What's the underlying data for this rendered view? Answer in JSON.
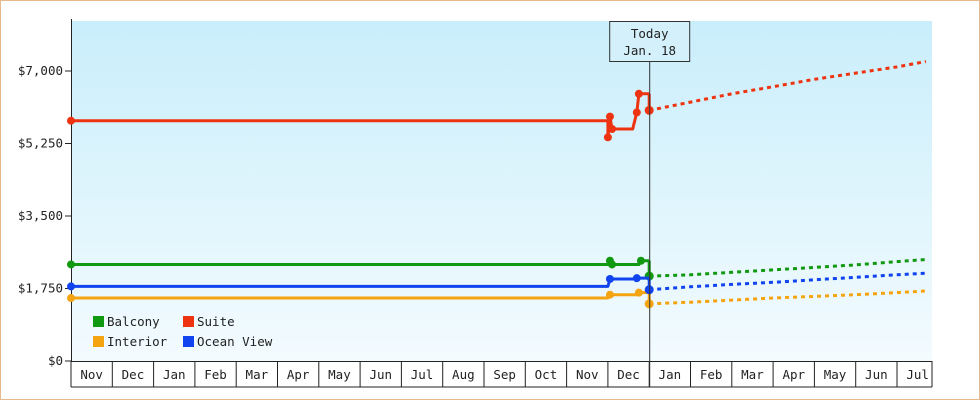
{
  "chart_data": {
    "type": "line",
    "x_labels": [
      "Nov",
      "Dec",
      "Jan",
      "Feb",
      "Mar",
      "Apr",
      "May",
      "Jun",
      "Jul",
      "Aug",
      "Sep",
      "Oct",
      "Nov",
      "Dec",
      "Jan",
      "Feb",
      "Mar",
      "Apr",
      "May",
      "Jun",
      "Jul"
    ],
    "y_ticks": [
      "$0",
      "$1,750",
      "$3,500",
      "$5,250",
      "$7,000"
    ],
    "ylim": [
      0,
      8000
    ],
    "today_label": [
      "Today",
      "Jan. 18"
    ],
    "legend_placement": "bottom-left",
    "series": [
      {
        "name": "Balcony",
        "color": "#119911",
        "history": [
          [
            0,
            2330
          ],
          [
            13.0,
            2330
          ],
          [
            13.05,
            2420
          ],
          [
            13.1,
            2330
          ],
          [
            13.75,
            2330
          ],
          [
            13.8,
            2420
          ],
          [
            14.0,
            2420
          ]
        ],
        "current": 2050,
        "forecast": [
          [
            14.0,
            2050
          ],
          [
            15.0,
            2080
          ],
          [
            16.0,
            2140
          ],
          [
            17.0,
            2200
          ],
          [
            18.0,
            2260
          ],
          [
            19.0,
            2320
          ],
          [
            20.0,
            2400
          ],
          [
            20.7,
            2450
          ]
        ]
      },
      {
        "name": "Suite",
        "color": "#ee3311",
        "history": [
          [
            0,
            5800
          ],
          [
            13.0,
            5800
          ],
          [
            13.0,
            5400
          ],
          [
            13.05,
            5900
          ],
          [
            13.1,
            5600
          ],
          [
            13.6,
            5600
          ],
          [
            13.7,
            6000
          ],
          [
            13.75,
            6450
          ],
          [
            13.95,
            6450
          ],
          [
            14.0,
            6450
          ]
        ],
        "current": 6050,
        "forecast": [
          [
            14.0,
            6050
          ],
          [
            15.0,
            6250
          ],
          [
            16.0,
            6450
          ],
          [
            17.0,
            6620
          ],
          [
            18.0,
            6800
          ],
          [
            19.0,
            6950
          ],
          [
            20.0,
            7100
          ],
          [
            20.7,
            7230
          ]
        ]
      },
      {
        "name": "Interior",
        "color": "#f5a411",
        "history": [
          [
            0,
            1520
          ],
          [
            13.0,
            1520
          ],
          [
            13.05,
            1600
          ],
          [
            13.1,
            1600
          ],
          [
            13.7,
            1600
          ],
          [
            13.75,
            1650
          ],
          [
            14.0,
            1650
          ]
        ],
        "current": 1380,
        "forecast": [
          [
            14.0,
            1380
          ],
          [
            15.0,
            1420
          ],
          [
            16.0,
            1470
          ],
          [
            17.0,
            1520
          ],
          [
            18.0,
            1560
          ],
          [
            19.0,
            1600
          ],
          [
            20.0,
            1650
          ],
          [
            20.7,
            1690
          ]
        ]
      },
      {
        "name": "Ocean View",
        "color": "#1144ee",
        "history": [
          [
            0,
            1800
          ],
          [
            13.0,
            1800
          ],
          [
            13.05,
            1980
          ],
          [
            13.1,
            1980
          ],
          [
            13.6,
            1980
          ],
          [
            13.7,
            2000
          ],
          [
            14.0,
            2000
          ]
        ],
        "current": 1720,
        "forecast": [
          [
            14.0,
            1720
          ],
          [
            15.0,
            1790
          ],
          [
            16.0,
            1850
          ],
          [
            17.0,
            1900
          ],
          [
            18.0,
            1960
          ],
          [
            19.0,
            2020
          ],
          [
            20.0,
            2080
          ],
          [
            20.7,
            2120
          ]
        ]
      }
    ]
  }
}
